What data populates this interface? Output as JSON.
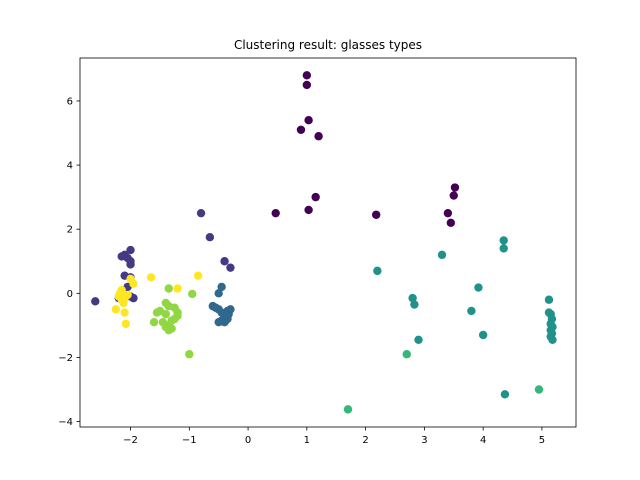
{
  "chart_data": {
    "type": "scatter",
    "title": "Clustering result: glasses types",
    "xlabel": "",
    "ylabel": "",
    "xlim": [
      -2.86,
      5.58
    ],
    "ylim": [
      -4.17,
      7.34
    ],
    "xticks": [
      -2,
      -1,
      0,
      1,
      2,
      3,
      4,
      5
    ],
    "yticks": [
      -4,
      -2,
      0,
      2,
      4,
      6
    ],
    "grid": false,
    "legend": "none",
    "series": [
      {
        "color": "#440154",
        "points": [
          [
            1.0,
            6.8
          ],
          [
            1.0,
            6.5
          ],
          [
            1.03,
            5.4
          ],
          [
            0.9,
            5.1
          ],
          [
            1.2,
            4.9
          ],
          [
            1.15,
            3.0
          ],
          [
            1.03,
            2.6
          ],
          [
            0.47,
            2.5
          ],
          [
            2.18,
            2.45
          ],
          [
            3.52,
            3.3
          ],
          [
            3.5,
            3.05
          ],
          [
            3.4,
            2.5
          ],
          [
            3.45,
            2.2
          ]
        ]
      },
      {
        "color": "#443983",
        "points": [
          [
            -2.6,
            -0.25
          ],
          [
            -0.8,
            2.5
          ],
          [
            -0.65,
            1.75
          ],
          [
            -0.4,
            1.0
          ],
          [
            -0.3,
            0.8
          ],
          [
            -2.0,
            1.35
          ],
          [
            -2.1,
            1.2
          ],
          [
            -2.15,
            1.15
          ],
          [
            -2.05,
            1.1
          ],
          [
            -2.0,
            1.0
          ],
          [
            -2.0,
            0.9
          ],
          [
            -2.1,
            0.55
          ],
          [
            -2.0,
            0.5
          ],
          [
            -2.05,
            0.2
          ],
          [
            -2.1,
            0.0
          ],
          [
            -2.0,
            -0.1
          ],
          [
            -2.2,
            -0.15
          ],
          [
            -1.95,
            -0.15
          ]
        ]
      },
      {
        "color": "#31688e",
        "points": [
          [
            -0.45,
            0.2
          ],
          [
            -0.5,
            0.0
          ],
          [
            -0.6,
            -0.4
          ],
          [
            -0.55,
            -0.45
          ],
          [
            -0.5,
            -0.5
          ],
          [
            -0.45,
            -0.6
          ],
          [
            -0.4,
            -0.7
          ],
          [
            -0.35,
            -0.55
          ],
          [
            -0.3,
            -0.5
          ],
          [
            -0.35,
            -0.8
          ],
          [
            -0.45,
            -0.85
          ],
          [
            -0.5,
            -0.9
          ],
          [
            -0.4,
            -0.9
          ],
          [
            -0.38,
            -0.85
          ],
          [
            -0.33,
            -0.65
          ]
        ]
      },
      {
        "color": "#21918c",
        "points": [
          [
            2.2,
            0.7
          ],
          [
            3.3,
            1.2
          ],
          [
            4.35,
            1.65
          ],
          [
            4.35,
            1.4
          ],
          [
            3.92,
            0.18
          ],
          [
            2.8,
            -0.15
          ],
          [
            2.83,
            -0.35
          ],
          [
            3.8,
            -0.55
          ],
          [
            4.0,
            -1.3
          ],
          [
            2.9,
            -1.45
          ],
          [
            4.37,
            -3.15
          ],
          [
            5.12,
            -0.2
          ],
          [
            5.12,
            -0.6
          ],
          [
            5.15,
            -0.65
          ],
          [
            5.17,
            -0.8
          ],
          [
            5.15,
            -0.95
          ],
          [
            5.18,
            -1.05
          ],
          [
            5.15,
            -1.15
          ],
          [
            5.17,
            -1.25
          ],
          [
            5.15,
            -1.35
          ],
          [
            5.18,
            -1.45
          ]
        ]
      },
      {
        "color": "#35b779",
        "points": [
          [
            2.7,
            -1.9
          ],
          [
            1.7,
            -3.62
          ],
          [
            4.95,
            -3.0
          ]
        ]
      },
      {
        "color": "#90d743",
        "points": [
          [
            -1.35,
            0.15
          ],
          [
            -0.95,
            -0.02
          ],
          [
            -1.4,
            -0.3
          ],
          [
            -1.35,
            -0.4
          ],
          [
            -1.5,
            -0.55
          ],
          [
            -1.55,
            -0.6
          ],
          [
            -1.25,
            -0.45
          ],
          [
            -1.2,
            -0.6
          ],
          [
            -1.4,
            -0.65
          ],
          [
            -1.6,
            -0.9
          ],
          [
            -1.45,
            -0.9
          ],
          [
            -1.35,
            -1.0
          ],
          [
            -1.3,
            -1.1
          ],
          [
            -1.25,
            -0.8
          ],
          [
            -1.2,
            -0.7
          ],
          [
            -1.3,
            -0.85
          ],
          [
            -1.4,
            -1.05
          ],
          [
            -1.35,
            -1.15
          ],
          [
            -1.0,
            -1.9
          ]
        ]
      },
      {
        "color": "#fde725",
        "points": [
          [
            -2.15,
            0.1
          ],
          [
            -2.2,
            -0.1
          ],
          [
            -2.1,
            -0.15
          ],
          [
            -2.15,
            -0.2
          ],
          [
            -2.25,
            -0.5
          ],
          [
            -2.1,
            -0.6
          ],
          [
            -2.08,
            -0.95
          ],
          [
            -1.95,
            0.3
          ],
          [
            -2.0,
            0.45
          ],
          [
            -1.65,
            0.5
          ],
          [
            -1.2,
            0.15
          ],
          [
            -0.85,
            0.55
          ],
          [
            -2.18,
            0.0
          ],
          [
            -2.05,
            -0.05
          ],
          [
            -2.12,
            -0.3
          ]
        ]
      }
    ]
  }
}
